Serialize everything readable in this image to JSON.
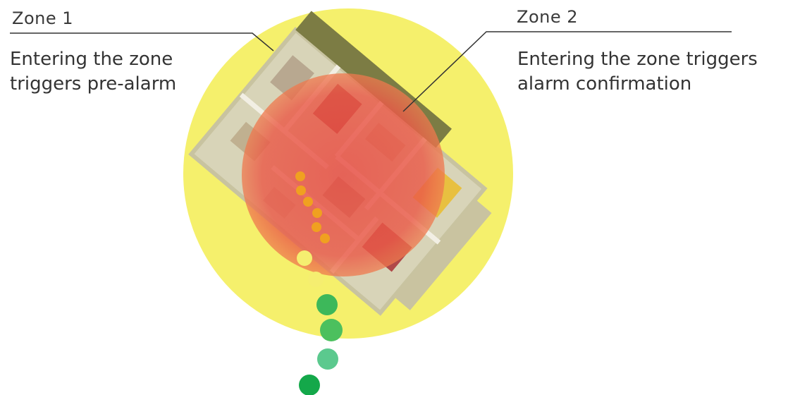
{
  "zones": [
    {
      "title": "Zone 1",
      "description_line1": "Entering the zone",
      "description_line2": "triggers pre-alarm",
      "color": "#f3f06a"
    },
    {
      "title": "Zone 2",
      "description_line1": "Entering the zone triggers",
      "description_line2": "alarm confirmation",
      "color": "#ef4e45"
    }
  ],
  "path_dots": {
    "inside_zone2_color": "#f0a020",
    "inside_zone1_color": "#f5ee70",
    "outside_colors": [
      "#3db85a",
      "#4cc05e",
      "#5bc98e",
      "#14a84a"
    ]
  }
}
